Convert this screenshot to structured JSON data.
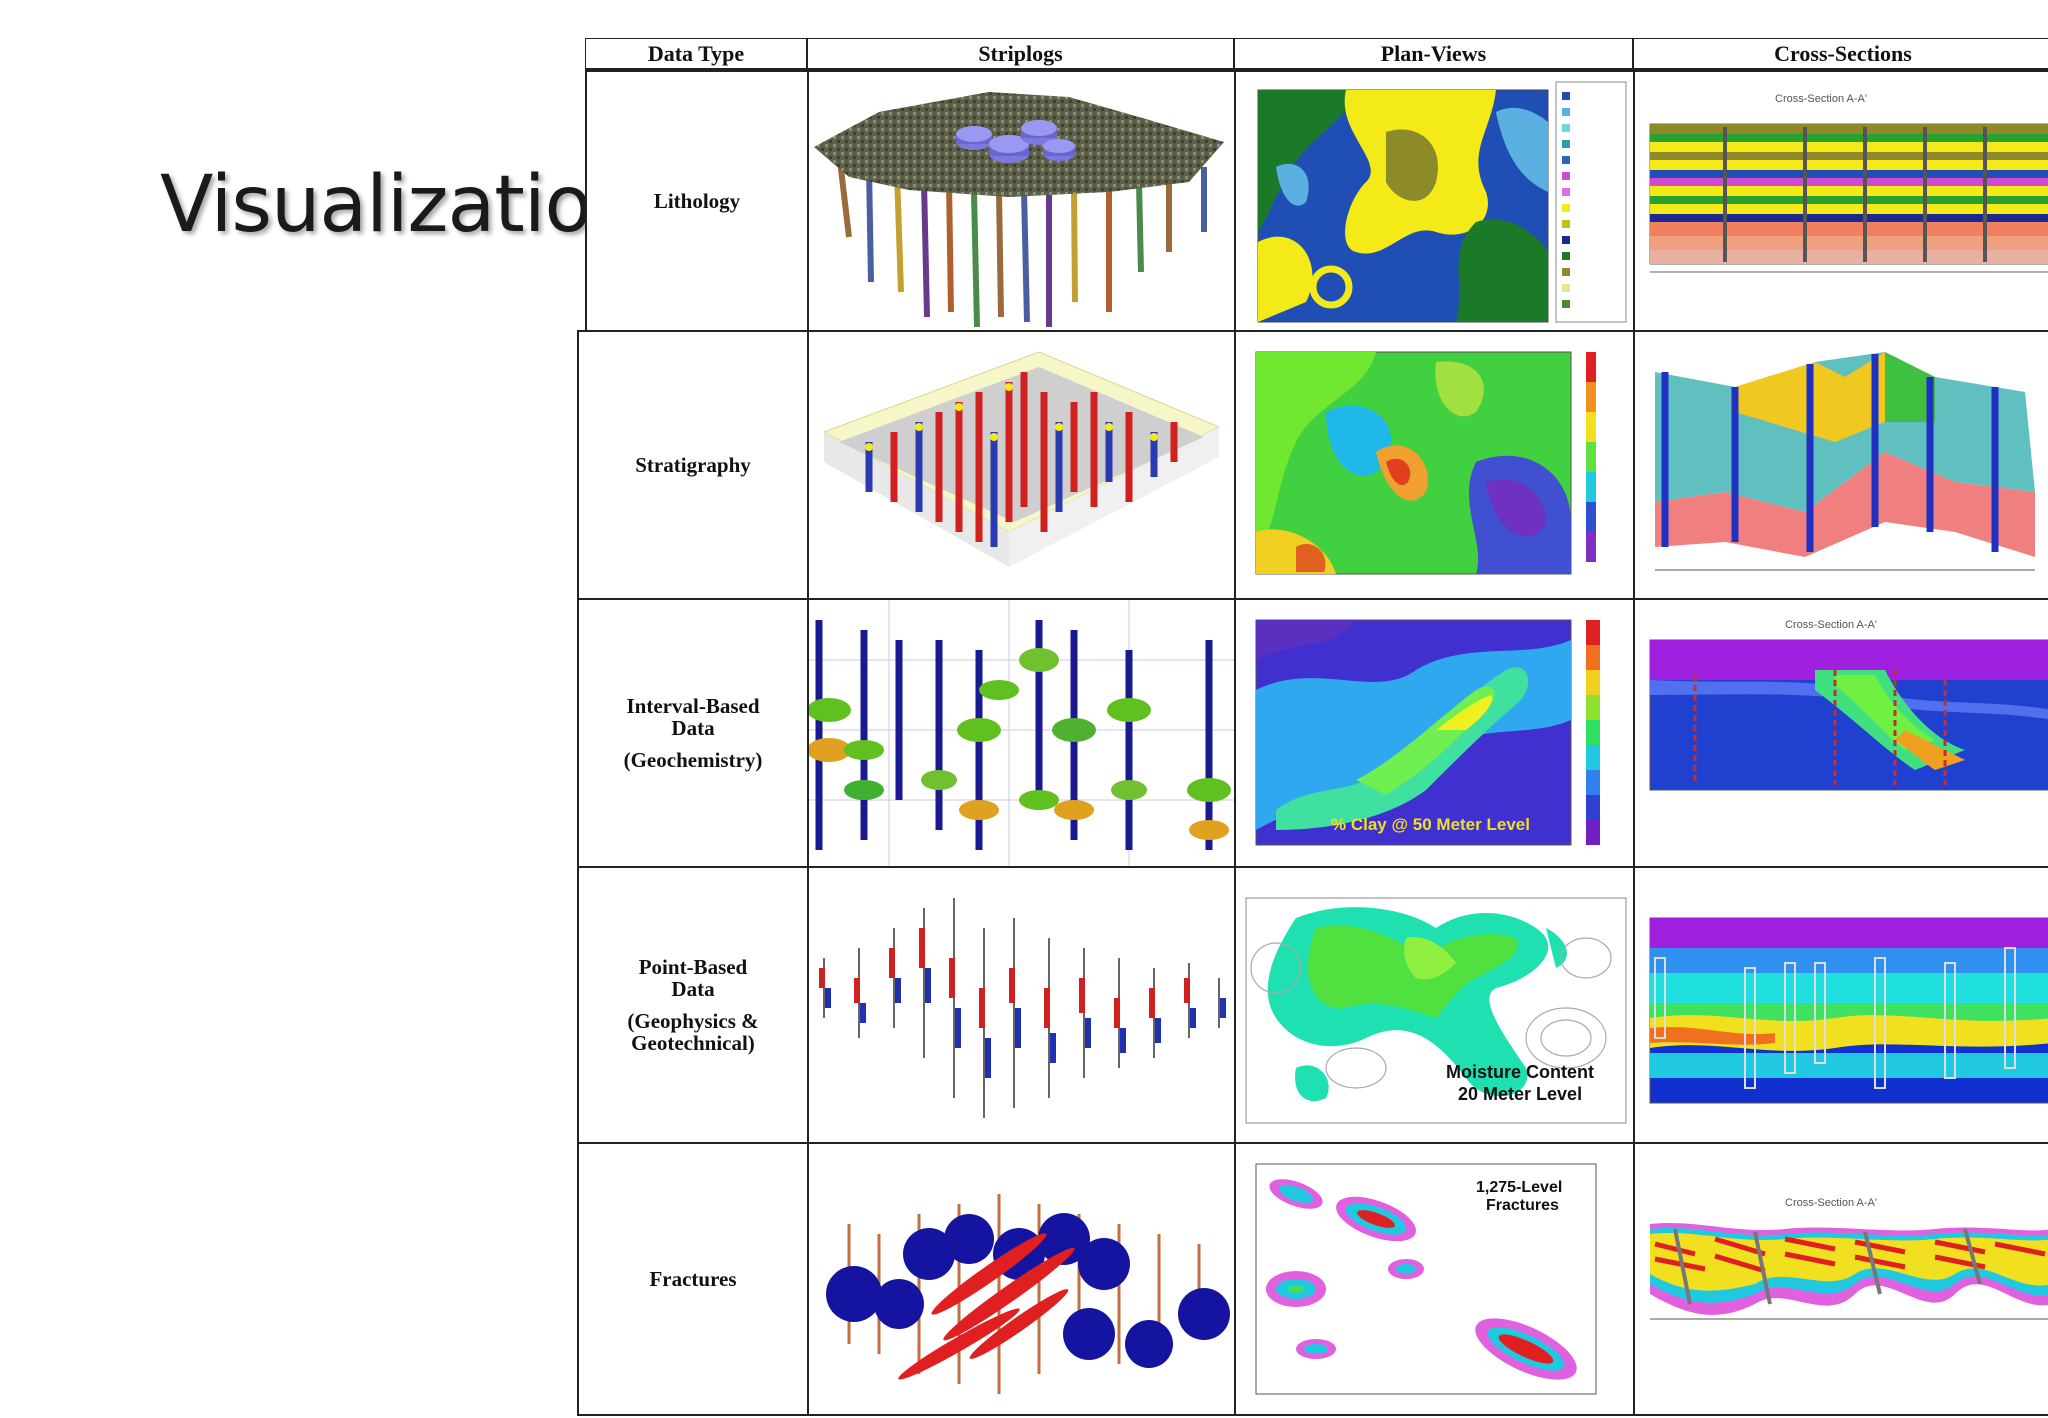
{
  "slide": {
    "title": "Visualization"
  },
  "table": {
    "headers": [
      "Data Type",
      "Striplogs",
      "Plan-Views",
      "Cross-Sections"
    ],
    "rows": [
      {
        "id": "lithology",
        "label": [
          "Lithology"
        ]
      },
      {
        "id": "stratigraphy",
        "label": [
          "Stratigraphy"
        ]
      },
      {
        "id": "interval",
        "label": [
          "Interval-Based",
          "Data"
        ],
        "sublabel": "(Geochemistry)"
      },
      {
        "id": "point",
        "label": [
          "Point-Based",
          "Data"
        ],
        "sublabel": [
          "(Geophysics &",
          "Geotechnical)"
        ]
      },
      {
        "id": "fractures",
        "label": [
          "Fractures"
        ]
      }
    ]
  },
  "annotations": {
    "interval_planview": "% Clay @ 50 Meter Level",
    "point_planview": [
      "Moisture Content",
      "20 Meter Level"
    ],
    "fractures_planview": [
      "1,275-Level",
      "Fractures"
    ],
    "cross_section_title": "Cross-Section A-A'"
  }
}
